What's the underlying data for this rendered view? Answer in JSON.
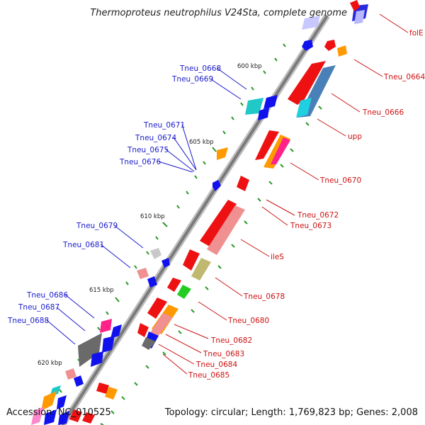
{
  "header": {
    "title": "Thermoproteus neutrophilus V24Sta, complete genome"
  },
  "footer": {
    "accession": "Accession: NC_010525",
    "summary": "Topology: circular; Length: 1,769,823 bp; Genes: 2,008"
  },
  "scale_marks": [
    "600 kbp",
    "605 kbp",
    "610 kbp",
    "615 kbp",
    "620 kbp"
  ],
  "gene_labels_left": [
    "Tneu_0668",
    "Tneu_0669",
    "Tneu_0671",
    "Tneu_0674",
    "Tneu_0675",
    "Tneu_0676",
    "Tneu_0679",
    "Tneu_0681",
    "Tneu_0686",
    "Tneu_0687",
    "Tneu_0688"
  ],
  "gene_labels_right": [
    "folE",
    "Tneu_0664",
    "Tneu_0666",
    "upp",
    "Tneu_0670",
    "Tneu_0672",
    "Tneu_0673",
    "ileS",
    "Tneu_0678",
    "Tneu_0680",
    "Tneu_0682",
    "Tneu_0683",
    "Tneu_0684",
    "Tneu_0685"
  ],
  "colors": {
    "backbone": "#8a8a8a",
    "forward_gene": "#ee1111",
    "reverse_gene": "#1111ee",
    "left_label": "#1a1acc",
    "right_label": "#cc1111",
    "tick": "#2a9a2a"
  }
}
